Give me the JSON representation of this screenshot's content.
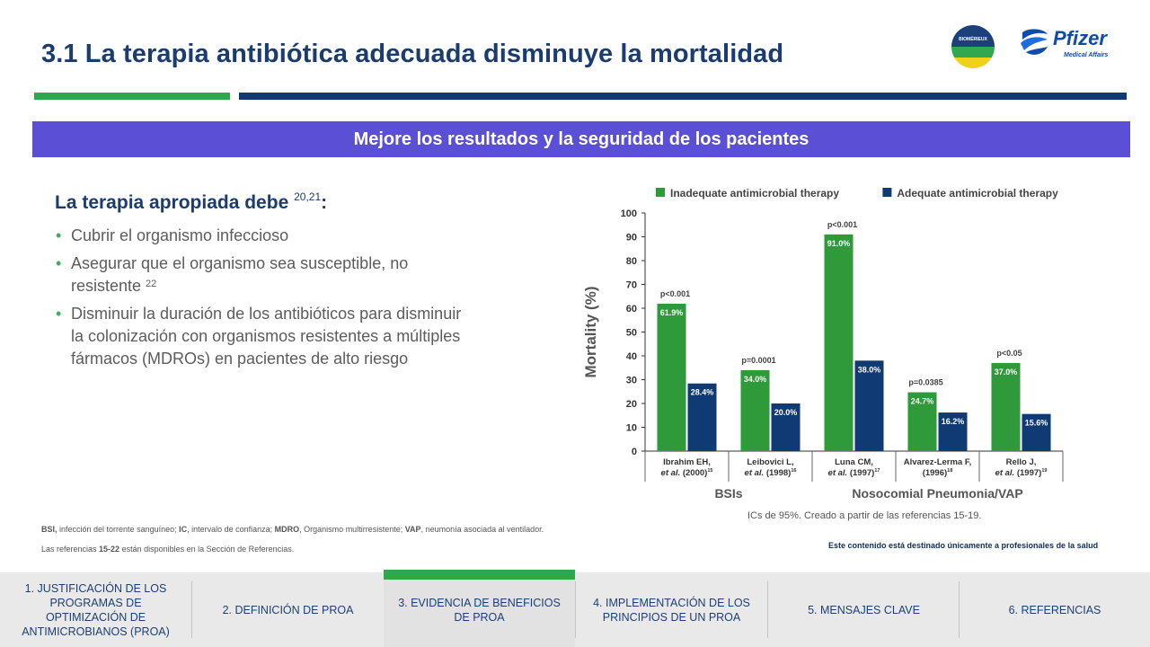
{
  "title": "3.1 La terapia antibiótica adecuada disminuye la mortalidad",
  "logos": {
    "biomerieux": "BIOMÉRIEUX",
    "pfizer": "Pfizer",
    "pfizer_sub": "Medical Affairs"
  },
  "banner": "Mejore los resultados y la seguridad de los pacientes",
  "subhead": {
    "text": "La terapia apropiada debe ",
    "sup": "20,21",
    "suffix": ":"
  },
  "bullets": [
    {
      "text": "Cubrir el organismo infeccioso",
      "sup": ""
    },
    {
      "text": "Asegurar que el organismo sea susceptible, no resistente ",
      "sup": "22"
    },
    {
      "text": "Disminuir la duración de los antibióticos para disminuir la colonización con organismos resistentes a múltiples fármacos (MDROs) en pacientes de alto riesgo",
      "sup": ""
    }
  ],
  "chart_data": {
    "type": "bar",
    "ylabel": "Mortality (%)",
    "ylim": [
      0,
      100
    ],
    "yticks": [
      0,
      10,
      20,
      30,
      40,
      50,
      60,
      70,
      80,
      90,
      100
    ],
    "legend_position": "top",
    "categories": [
      {
        "line1": "Ibrahim EH,",
        "line2": "et al.",
        "line2b": " (2000)",
        "ref": "15"
      },
      {
        "line1": "Leibovici L,",
        "line2": "et al.",
        "line2b": " (1998)",
        "ref": "16"
      },
      {
        "line1": "Luna CM,",
        "line2": "et al.",
        "line2b": " (1997)",
        "ref": "17"
      },
      {
        "line1": "Alvarez-Lerma F,",
        "line2": "",
        "line2b": "(1996)",
        "ref": "18"
      },
      {
        "line1": "Rello J,",
        "line2": "et al.",
        "line2b": " (1997)",
        "ref": "19"
      }
    ],
    "series": [
      {
        "name": "Inadequate antimicrobial therapy",
        "color": "#2e9a3a",
        "values": [
          61.9,
          34.0,
          91.0,
          24.7,
          37.0
        ],
        "labels": [
          "61.9%",
          "34.0%",
          "91.0%",
          "24.7%",
          "37.0%"
        ]
      },
      {
        "name": "Adequate antimicrobial therapy",
        "color": "#0f3a74",
        "values": [
          28.4,
          20.0,
          38.0,
          16.2,
          15.6
        ],
        "labels": [
          "28.4%",
          "20.0%",
          "38.0%",
          "16.2%",
          "15.6%"
        ]
      }
    ],
    "pvalues": [
      "p<0.001",
      "p=0.0001",
      "p<0.001",
      "p=0.0385",
      "p<0.05"
    ],
    "groups": [
      {
        "label": "BSIs",
        "span": [
          0,
          1
        ]
      },
      {
        "label": "Nosocomial Pneumonia/VAP",
        "span": [
          2,
          4
        ]
      }
    ],
    "caption": "ICs de 95%. Creado a partir de las referencias 15-19."
  },
  "footnotes": {
    "abbrev": [
      {
        "bold": "BSI,",
        "text": " infección del torrente sanguíneo; "
      },
      {
        "bold": "IC",
        "text": ", intervalo de confianza; "
      },
      {
        "bold": "MDRO",
        "text": ", Organismo multirresistente; "
      },
      {
        "bold": "VAP",
        "text": ", neumonía asociada al ventilador."
      }
    ],
    "refs_pre": "Las referencias ",
    "refs_bold": "15-22",
    "refs_post": " están disponibles en la Sección de Referencias."
  },
  "disclaimer": "Este contenido está destinado únicamente a profesionales de la salud",
  "nav": [
    {
      "label": "1. JUSTIFICACIÓN DE LOS PROGRAMAS DE OPTIMIZACIÓN DE ANTIMICROBIANOS (PROA)",
      "active": false
    },
    {
      "label": "2. DEFINICIÓN DE PROA",
      "active": false
    },
    {
      "label": "3. EVIDENCIA DE BENEFICIOS DE PROA",
      "active": true
    },
    {
      "label": "4. IMPLEMENTACIÓN DE LOS PRINCIPIOS DE UN PROA",
      "active": false
    },
    {
      "label": "5. MENSAJES CLAVE",
      "active": false
    },
    {
      "label": "6. REFERENCIAS",
      "active": false
    }
  ]
}
